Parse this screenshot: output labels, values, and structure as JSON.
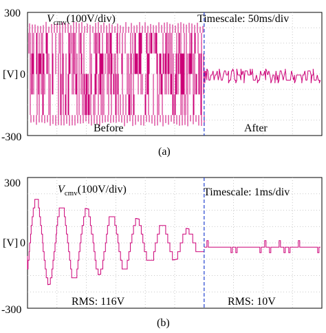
{
  "chart_data": [
    {
      "type": "line",
      "panel_label": "(a)",
      "ylabel": "[V]",
      "ytick_labels": [
        "300",
        "0",
        "-300"
      ],
      "ylim": [
        -300,
        300
      ],
      "grid": true,
      "channel_label_main": "V",
      "channel_label_sub": "cmv",
      "channel_label_rest": "(100V/div)",
      "timescale": "Timescale: 50ms/div",
      "divider_label_left": "Before",
      "divider_label_right": "After",
      "line_color": "#cc0077",
      "x_divisions": 10,
      "divider_division": 6,
      "series": [
        {
          "segment": "before",
          "x_div": [
            0,
            6
          ],
          "levels": [
            200,
            100,
            0,
            -100,
            -200
          ],
          "spike_peak": [
            255,
            -255
          ]
        },
        {
          "segment": "after",
          "x_div": [
            6,
            10
          ],
          "levels": [
            -5,
            15,
            -30
          ],
          "spike_peak": [
            25,
            -45
          ]
        }
      ]
    },
    {
      "type": "line",
      "panel_label": "(b)",
      "ylabel": "[V]",
      "ytick_labels": [
        "300",
        "0",
        "-300"
      ],
      "ylim": [
        -300,
        300
      ],
      "grid": true,
      "channel_label_main": "V",
      "channel_label_sub": "cmv",
      "channel_label_rest": "(100V/div)",
      "timescale": "Timescale: 1ms/div",
      "divider_label_left": "RMS: 116V",
      "divider_label_right": "RMS: 10V",
      "line_color": "#cc0077",
      "x_divisions": 10,
      "divider_division": 6,
      "series": [
        {
          "segment": "before",
          "x_div": [
            0,
            6
          ],
          "cycles": 7,
          "amplitude_start": 210,
          "amplitude_end": 50,
          "levels": [
            200,
            100,
            0,
            -100,
            -200
          ]
        },
        {
          "segment": "after",
          "x_div": [
            6,
            10
          ],
          "baseline": -20,
          "spike_range": [
            -45,
            10
          ]
        }
      ]
    }
  ]
}
